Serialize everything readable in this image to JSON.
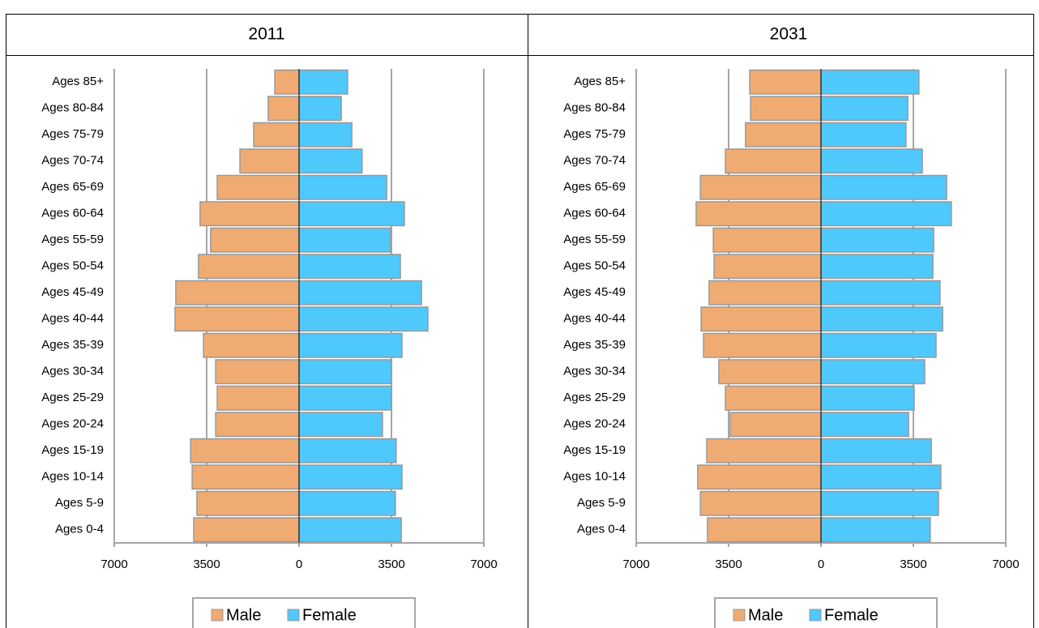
{
  "chart_data": [
    {
      "type": "bar",
      "orientation": "horizontal",
      "title": "2011",
      "categories": [
        "Ages 85+",
        "Ages 80-84",
        "Ages 75-79",
        "Ages 70-74",
        "Ages 65-69",
        "Ages 60-64",
        "Ages 55-59",
        "Ages 50-54",
        "Ages 45-49",
        "Ages 40-44",
        "Ages 35-39",
        "Ages 30-34",
        "Ages 25-29",
        "Ages 20-24",
        "Ages 15-19",
        "Ages 10-14",
        "Ages 5-9",
        "Ages 0-4"
      ],
      "series": [
        {
          "name": "Male",
          "color": "#f0ab72",
          "values": [
            -920,
            -1170,
            -1720,
            -2240,
            -3100,
            -3750,
            -3350,
            -3810,
            -4670,
            -4700,
            -3620,
            -3160,
            -3100,
            -3160,
            -4110,
            -4050,
            -3870,
            -3990
          ]
        },
        {
          "name": "Female",
          "color": "#4fc8fb",
          "values": [
            1840,
            1600,
            2000,
            2390,
            3320,
            3990,
            3470,
            3840,
            4640,
            4880,
            3900,
            3500,
            3500,
            3160,
            3680,
            3900,
            3650,
            3870
          ]
        }
      ],
      "xlim": [
        -7000,
        7000
      ],
      "xticks": [
        {
          "value": -7000,
          "label": "7000"
        },
        {
          "value": -3500,
          "label": "3500"
        },
        0,
        3500,
        7000
      ],
      "grid": true,
      "legend": "bottom"
    },
    {
      "type": "bar",
      "orientation": "horizontal",
      "title": "2031",
      "categories": [
        "Ages 85+",
        "Ages 80-84",
        "Ages 75-79",
        "Ages 70-74",
        "Ages 65-69",
        "Ages 60-64",
        "Ages 55-59",
        "Ages 50-54",
        "Ages 45-49",
        "Ages 40-44",
        "Ages 35-39",
        "Ages 30-34",
        "Ages 25-29",
        "Ages 20-24",
        "Ages 15-19",
        "Ages 10-14",
        "Ages 5-9",
        "Ages 0-4"
      ],
      "series": [
        {
          "name": "Male",
          "color": "#f0ab72",
          "values": [
            -2700,
            -2670,
            -2860,
            -3620,
            -4570,
            -4730,
            -4080,
            -4050,
            -4240,
            -4540,
            -4450,
            -3870,
            -3620,
            -3440,
            -4330,
            -4670,
            -4570,
            -4300
          ]
        },
        {
          "name": "Female",
          "color": "#4fc8fb",
          "values": [
            3710,
            3290,
            3220,
            3840,
            4760,
            4940,
            4270,
            4240,
            4510,
            4610,
            4360,
            3930,
            3530,
            3320,
            4180,
            4540,
            4450,
            4140
          ]
        }
      ],
      "xlim": [
        -7000,
        7000
      ],
      "xticks": [
        {
          "value": -7000,
          "label": "7000"
        },
        {
          "value": -3500,
          "label": "3500"
        },
        0,
        3500,
        7000
      ],
      "grid": true,
      "legend": "bottom"
    }
  ]
}
